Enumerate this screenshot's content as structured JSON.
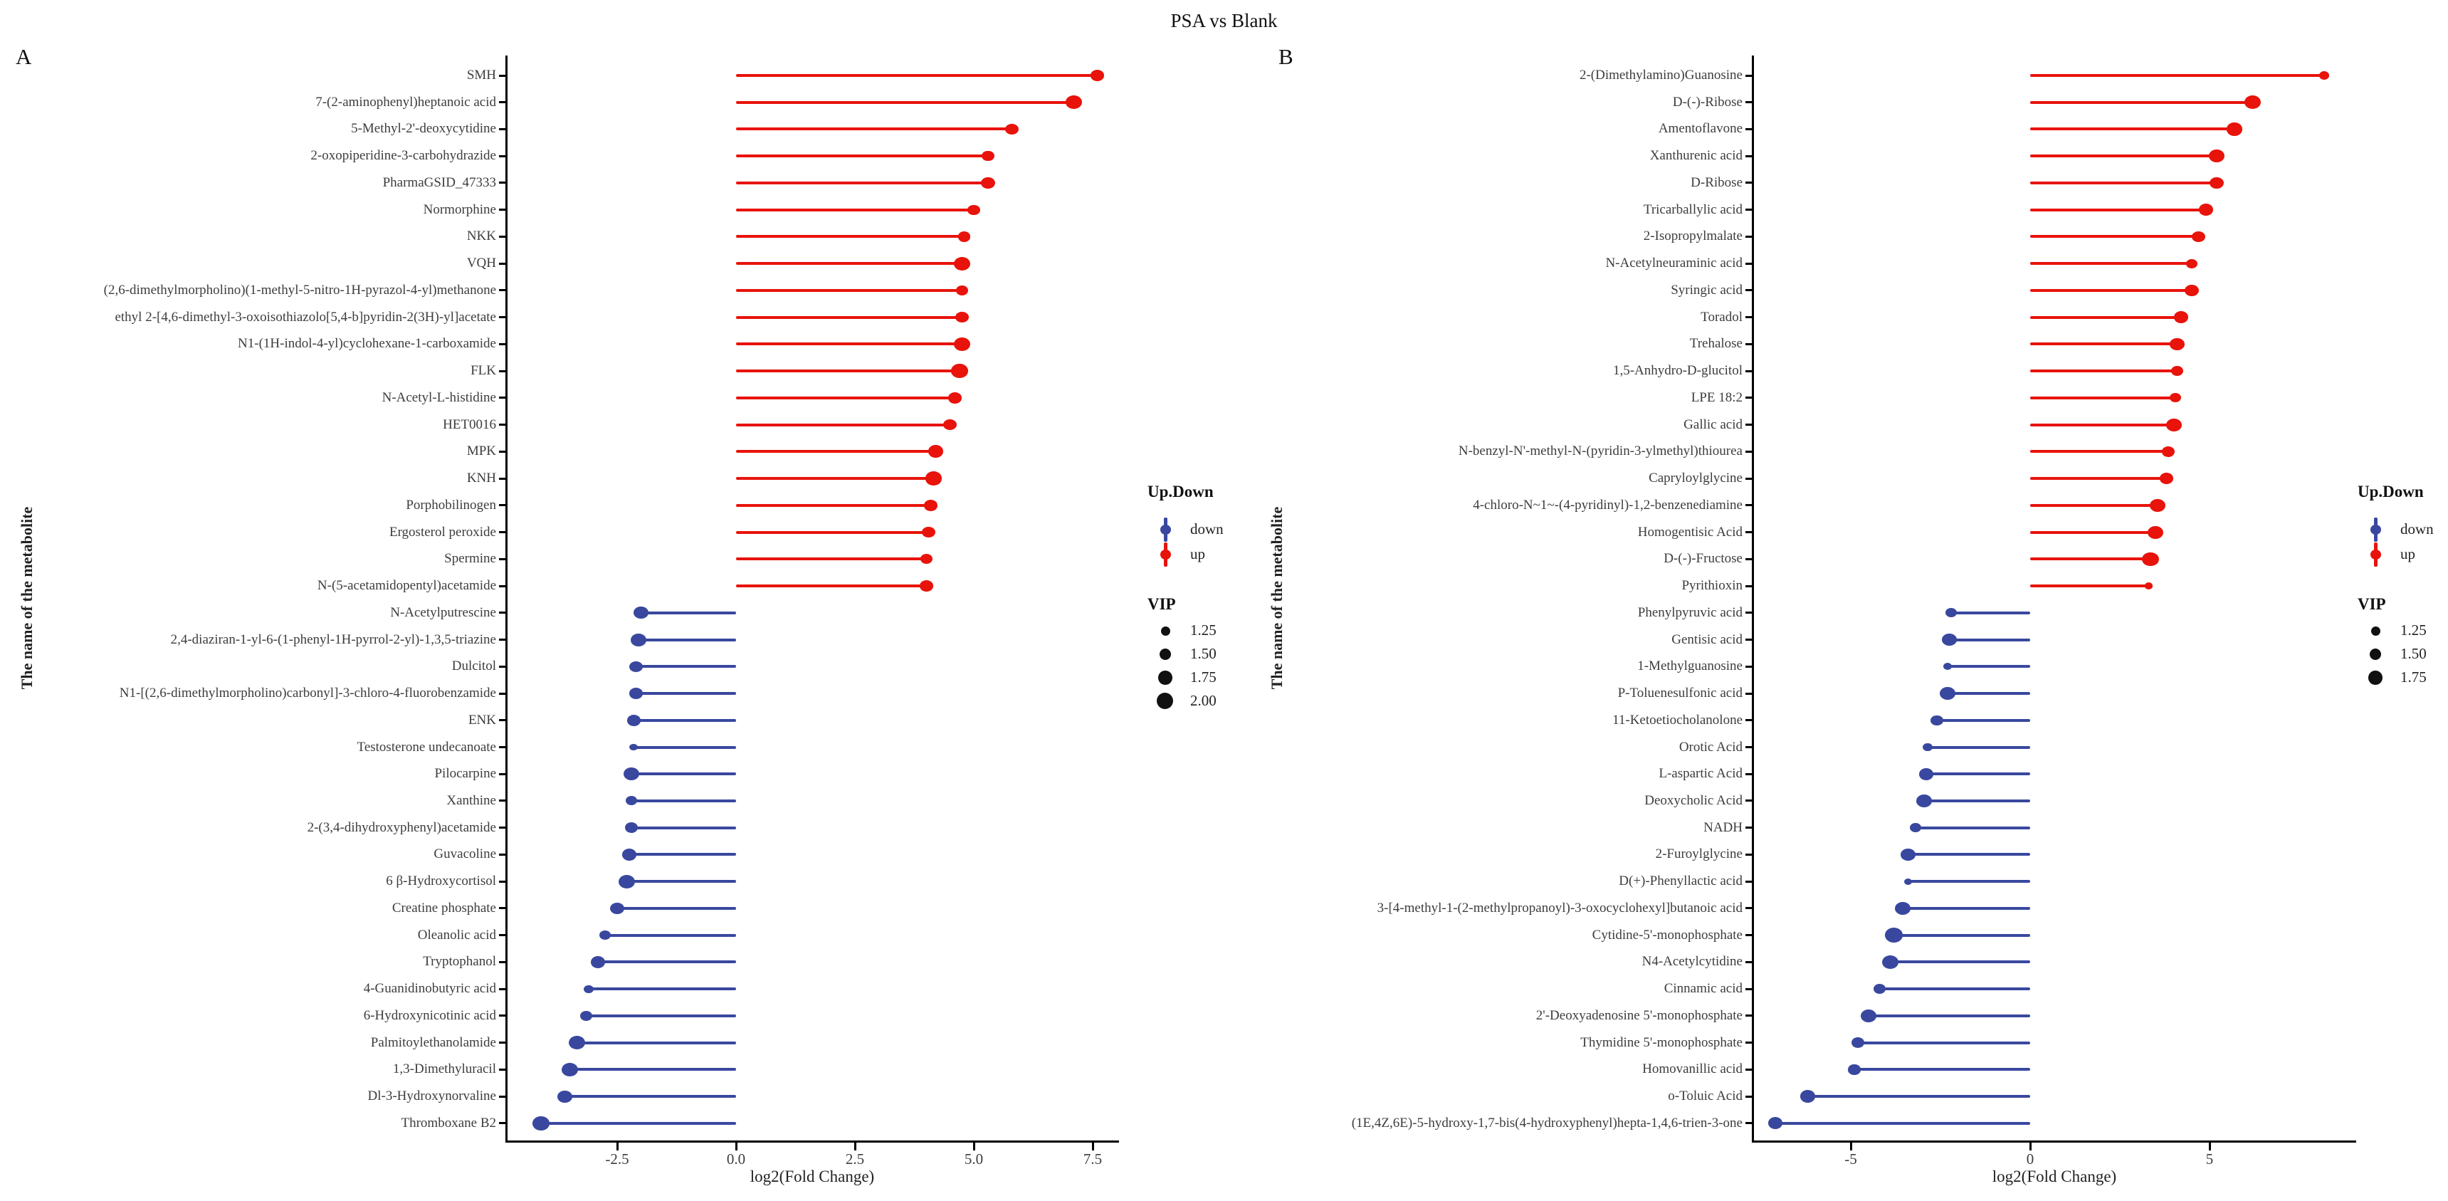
{
  "title": "PSA vs Blank",
  "colors": {
    "up": "#e8130b",
    "down": "#39489e",
    "axis": "#000000",
    "label_text": "#3d3d3d",
    "legend_dot": "#111111"
  },
  "legend": {
    "updown_title": "Up.Down",
    "down_label": "down",
    "up_label": "up",
    "vip_title": "VIP"
  },
  "chart_data": [
    {
      "type": "lollipop",
      "panel": "A",
      "title": "PSA vs Blank",
      "xlabel": "log2(Fold Change)",
      "ylabel": "The name of the metabolite",
      "xlim": [
        -4.9,
        8.0
      ],
      "xtick_values": [
        -2.5,
        0.0,
        2.5,
        5.0,
        7.5
      ],
      "xtick_labels": [
        "-2.5",
        "0.0",
        "2.5",
        "5.0",
        "7.5"
      ],
      "legend_vip_sizes": [
        "1.25",
        "1.50",
        "1.75",
        "2.00"
      ],
      "points": [
        {
          "name": "SMH",
          "log2fc": 7.6,
          "vip": 1.5,
          "direction": "up"
        },
        {
          "name": "7-(2-aminophenyl)heptanoic acid",
          "log2fc": 7.1,
          "vip": 1.75,
          "direction": "up"
        },
        {
          "name": "5-Methyl-2'-deoxycytidine",
          "log2fc": 5.8,
          "vip": 1.5,
          "direction": "up"
        },
        {
          "name": "2-oxopiperidine-3-carbohydrazide",
          "log2fc": 5.3,
          "vip": 1.4,
          "direction": "up"
        },
        {
          "name": "PharmaGSID_47333",
          "log2fc": 5.3,
          "vip": 1.6,
          "direction": "up"
        },
        {
          "name": "Normorphine",
          "log2fc": 5.0,
          "vip": 1.4,
          "direction": "up"
        },
        {
          "name": "NKK",
          "log2fc": 4.8,
          "vip": 1.4,
          "direction": "up"
        },
        {
          "name": "VQH",
          "log2fc": 4.75,
          "vip": 1.8,
          "direction": "up"
        },
        {
          "name": "(2,6-dimethylmorpholino)(1-methyl-5-nitro-1H-pyrazol-4-yl)methanone",
          "log2fc": 4.75,
          "vip": 1.4,
          "direction": "up"
        },
        {
          "name": "ethyl 2-[4,6-dimethyl-3-oxoisothiazolo[5,4-b]pyridin-2(3H)-yl]acetate",
          "log2fc": 4.75,
          "vip": 1.5,
          "direction": "up"
        },
        {
          "name": "N1-(1H-indol-4-yl)cyclohexane-1-carboxamide",
          "log2fc": 4.75,
          "vip": 1.8,
          "direction": "up"
        },
        {
          "name": "FLK",
          "log2fc": 4.7,
          "vip": 1.8,
          "direction": "up"
        },
        {
          "name": "N-Acetyl-L-histidine",
          "log2fc": 4.6,
          "vip": 1.5,
          "direction": "up"
        },
        {
          "name": "HET0016",
          "log2fc": 4.5,
          "vip": 1.5,
          "direction": "up"
        },
        {
          "name": "MPK",
          "log2fc": 4.2,
          "vip": 1.7,
          "direction": "up"
        },
        {
          "name": "KNH",
          "log2fc": 4.15,
          "vip": 1.8,
          "direction": "up"
        },
        {
          "name": "Porphobilinogen",
          "log2fc": 4.1,
          "vip": 1.5,
          "direction": "up"
        },
        {
          "name": "Ergosterol peroxide",
          "log2fc": 4.05,
          "vip": 1.5,
          "direction": "up"
        },
        {
          "name": "Spermine",
          "log2fc": 4.0,
          "vip": 1.4,
          "direction": "up"
        },
        {
          "name": "N-(5-acetamidopentyl)acetamide",
          "log2fc": 4.0,
          "vip": 1.5,
          "direction": "up"
        },
        {
          "name": "N-Acetylputrescine",
          "log2fc": -2.0,
          "vip": 1.6,
          "direction": "down"
        },
        {
          "name": "2,4-diaziran-1-yl-6-(1-phenyl-1H-pyrrol-2-yl)-1,3,5-triazine",
          "log2fc": -2.05,
          "vip": 1.7,
          "direction": "down"
        },
        {
          "name": "Dulcitol",
          "log2fc": -2.1,
          "vip": 1.5,
          "direction": "down"
        },
        {
          "name": "N1-[(2,6-dimethylmorpholino)carbonyl]-3-chloro-4-fluorobenzamide",
          "log2fc": -2.1,
          "vip": 1.5,
          "direction": "down"
        },
        {
          "name": "ENK",
          "log2fc": -2.15,
          "vip": 1.5,
          "direction": "down"
        },
        {
          "name": "Testosterone undecanoate",
          "log2fc": -2.15,
          "vip": 1.05,
          "direction": "down"
        },
        {
          "name": "Pilocarpine",
          "log2fc": -2.2,
          "vip": 1.7,
          "direction": "down"
        },
        {
          "name": "Xanthine",
          "log2fc": -2.2,
          "vip": 1.3,
          "direction": "down"
        },
        {
          "name": "2-(3,4-dihydroxyphenyl)acetamide",
          "log2fc": -2.2,
          "vip": 1.5,
          "direction": "down"
        },
        {
          "name": "Guvacoline",
          "log2fc": -2.25,
          "vip": 1.6,
          "direction": "down"
        },
        {
          "name": "6 β-Hydroxycortisol",
          "log2fc": -2.3,
          "vip": 1.8,
          "direction": "down"
        },
        {
          "name": "Creatine phosphate",
          "log2fc": -2.5,
          "vip": 1.6,
          "direction": "down"
        },
        {
          "name": "Oleanolic acid",
          "log2fc": -2.75,
          "vip": 1.3,
          "direction": "down"
        },
        {
          "name": "Tryptophanol",
          "log2fc": -2.9,
          "vip": 1.6,
          "direction": "down"
        },
        {
          "name": "4-Guanidinobutyric acid",
          "log2fc": -3.1,
          "vip": 1.15,
          "direction": "down"
        },
        {
          "name": "6-Hydroxynicotinic acid",
          "log2fc": -3.15,
          "vip": 1.4,
          "direction": "down"
        },
        {
          "name": "Palmitoylethanolamide",
          "log2fc": -3.35,
          "vip": 1.8,
          "direction": "down"
        },
        {
          "name": "1,3-Dimethyluracil",
          "log2fc": -3.5,
          "vip": 1.8,
          "direction": "down"
        },
        {
          "name": "Dl-3-Hydroxynorvaline",
          "log2fc": -3.6,
          "vip": 1.6,
          "direction": "down"
        },
        {
          "name": "Thromboxane B2",
          "log2fc": -4.1,
          "vip": 1.8,
          "direction": "down"
        }
      ]
    },
    {
      "type": "lollipop",
      "panel": "B",
      "title": "PSA vs Blank",
      "xlabel": "log2(Fold Change)",
      "ylabel": "The name of the metabolite",
      "xlim": [
        -7.9,
        9.1
      ],
      "xtick_values": [
        -5,
        0,
        5
      ],
      "xtick_labels": [
        "-5",
        "0",
        "5"
      ],
      "legend_vip_sizes": [
        "1.25",
        "1.50",
        "1.75"
      ],
      "points": [
        {
          "name": "2-(Dimethylamino)Guanosine",
          "log2fc": 8.2,
          "vip": 1.2,
          "direction": "up"
        },
        {
          "name": "D-(-)-Ribose",
          "log2fc": 6.2,
          "vip": 1.8,
          "direction": "up"
        },
        {
          "name": "Amentoflavone",
          "log2fc": 5.7,
          "vip": 1.7,
          "direction": "up"
        },
        {
          "name": "Xanthurenic acid",
          "log2fc": 5.2,
          "vip": 1.7,
          "direction": "up"
        },
        {
          "name": "D-Ribose",
          "log2fc": 5.2,
          "vip": 1.6,
          "direction": "up"
        },
        {
          "name": "Tricarballylic acid",
          "log2fc": 4.9,
          "vip": 1.6,
          "direction": "up"
        },
        {
          "name": "2-Isopropylmalate",
          "log2fc": 4.7,
          "vip": 1.5,
          "direction": "up"
        },
        {
          "name": "N-Acetylneuraminic acid",
          "log2fc": 4.5,
          "vip": 1.3,
          "direction": "up"
        },
        {
          "name": "Syringic acid",
          "log2fc": 4.5,
          "vip": 1.6,
          "direction": "up"
        },
        {
          "name": "Toradol",
          "log2fc": 4.2,
          "vip": 1.6,
          "direction": "up"
        },
        {
          "name": "Trehalose",
          "log2fc": 4.1,
          "vip": 1.6,
          "direction": "up"
        },
        {
          "name": "1,5-Anhydro-D-glucitol",
          "log2fc": 4.1,
          "vip": 1.4,
          "direction": "up"
        },
        {
          "name": "LPE 18:2",
          "log2fc": 4.05,
          "vip": 1.3,
          "direction": "up"
        },
        {
          "name": "Gallic acid",
          "log2fc": 4.0,
          "vip": 1.7,
          "direction": "up"
        },
        {
          "name": "N-benzyl-N'-methyl-N-(pyridin-3-ylmethyl)thiourea",
          "log2fc": 3.85,
          "vip": 1.5,
          "direction": "up"
        },
        {
          "name": "Capryloylglycine",
          "log2fc": 3.8,
          "vip": 1.5,
          "direction": "up"
        },
        {
          "name": "4-chloro-N~1~-(4-pyridinyl)-1,2-benzenediamine",
          "log2fc": 3.55,
          "vip": 1.7,
          "direction": "up"
        },
        {
          "name": "Homogentisic Acid",
          "log2fc": 3.5,
          "vip": 1.7,
          "direction": "up"
        },
        {
          "name": "D-(-)-Fructose",
          "log2fc": 3.35,
          "vip": 1.8,
          "direction": "up"
        },
        {
          "name": "Pyrithioxin",
          "log2fc": 3.3,
          "vip": 1.0,
          "direction": "up"
        },
        {
          "name": "Phenylpyruvic acid",
          "log2fc": -2.2,
          "vip": 1.3,
          "direction": "down"
        },
        {
          "name": "Gentisic acid",
          "log2fc": -2.25,
          "vip": 1.6,
          "direction": "down"
        },
        {
          "name": "1-Methylguanosine",
          "log2fc": -2.3,
          "vip": 1.1,
          "direction": "down"
        },
        {
          "name": "P-Toluenesulfonic acid",
          "log2fc": -2.3,
          "vip": 1.7,
          "direction": "down"
        },
        {
          "name": "11-Ketoetiocholanolone",
          "log2fc": -2.6,
          "vip": 1.4,
          "direction": "down"
        },
        {
          "name": "Orotic Acid",
          "log2fc": -2.85,
          "vip": 1.2,
          "direction": "down"
        },
        {
          "name": "L-aspartic Acid",
          "log2fc": -2.9,
          "vip": 1.6,
          "direction": "down"
        },
        {
          "name": "Deoxycholic Acid",
          "log2fc": -2.95,
          "vip": 1.7,
          "direction": "down"
        },
        {
          "name": "NADH",
          "log2fc": -3.2,
          "vip": 1.3,
          "direction": "down"
        },
        {
          "name": "2-Furoylglycine",
          "log2fc": -3.4,
          "vip": 1.6,
          "direction": "down"
        },
        {
          "name": "D(+)-Phenyllactic acid",
          "log2fc": -3.4,
          "vip": 1.0,
          "direction": "down"
        },
        {
          "name": "3-[4-methyl-1-(2-methylpropanoyl)-3-oxocyclohexyl]butanoic acid",
          "log2fc": -3.55,
          "vip": 1.7,
          "direction": "down"
        },
        {
          "name": "Cytidine-5'-monophosphate",
          "log2fc": -3.8,
          "vip": 1.9,
          "direction": "down"
        },
        {
          "name": "N4-Acetylcytidine",
          "log2fc": -3.9,
          "vip": 1.8,
          "direction": "down"
        },
        {
          "name": "Cinnamic acid",
          "log2fc": -4.2,
          "vip": 1.4,
          "direction": "down"
        },
        {
          "name": "2'-Deoxyadenosine 5'-monophosphate",
          "log2fc": -4.5,
          "vip": 1.7,
          "direction": "down"
        },
        {
          "name": "Thymidine 5'-monophosphate",
          "log2fc": -4.8,
          "vip": 1.5,
          "direction": "down"
        },
        {
          "name": "Homovanillic acid",
          "log2fc": -4.9,
          "vip": 1.4,
          "direction": "down"
        },
        {
          "name": "o-Toluic Acid",
          "log2fc": -6.2,
          "vip": 1.7,
          "direction": "down"
        },
        {
          "name": "(1E,4Z,6E)-5-hydroxy-1,7-bis(4-hydroxyphenyl)hepta-1,4,6-trien-3-one",
          "log2fc": -7.1,
          "vip": 1.6,
          "direction": "down"
        }
      ]
    }
  ]
}
